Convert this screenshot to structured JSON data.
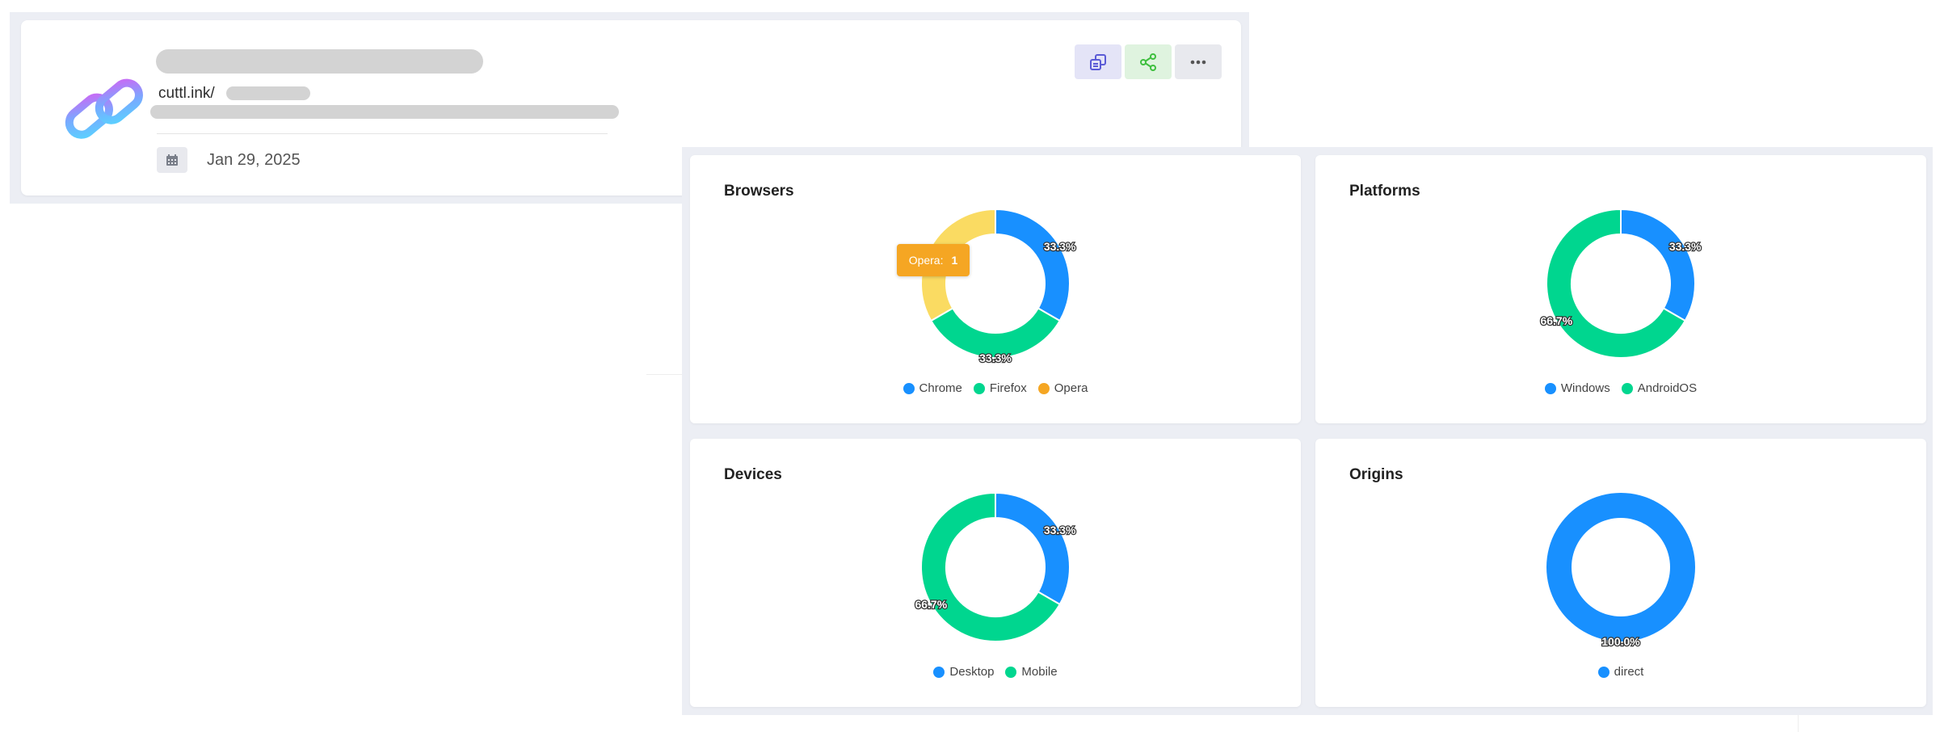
{
  "link": {
    "short_url_prefix": "cuttl.ink/",
    "created_date": "Jan 29, 2025",
    "icons": {
      "logo": "chain-link-logo-icon",
      "calendar": "calendar-icon",
      "copy": "copy-icon",
      "share": "share-icon",
      "more": "more-horizontal-icon"
    }
  },
  "cards": [
    {
      "title": "Browsers",
      "segments": [
        {
          "label": "Chrome",
          "value": 1,
          "percent_label": "33.3%",
          "color": "#1890ff"
        },
        {
          "label": "Firefox",
          "value": 1,
          "percent_label": "33.3%",
          "color": "#00d68f"
        },
        {
          "label": "Opera",
          "value": 1,
          "percent_label": "",
          "color": "#fadb62",
          "legend_color": "#f5a623"
        }
      ],
      "tooltip": {
        "label": "Opera:",
        "value": "1"
      }
    },
    {
      "title": "Platforms",
      "segments": [
        {
          "label": "Windows",
          "value": 1,
          "percent_label": "33.3%",
          "color": "#1890ff"
        },
        {
          "label": "AndroidOS",
          "value": 2,
          "percent_label": "66.7%",
          "color": "#00d68f"
        }
      ]
    },
    {
      "title": "Devices",
      "segments": [
        {
          "label": "Desktop",
          "value": 1,
          "percent_label": "33.3%",
          "color": "#1890ff"
        },
        {
          "label": "Mobile",
          "value": 2,
          "percent_label": "66.7%",
          "color": "#00d68f"
        }
      ]
    },
    {
      "title": "Origins",
      "segments": [
        {
          "label": "direct",
          "value": 1,
          "percent_label": "100.0%",
          "color": "#1890ff"
        }
      ]
    }
  ]
}
